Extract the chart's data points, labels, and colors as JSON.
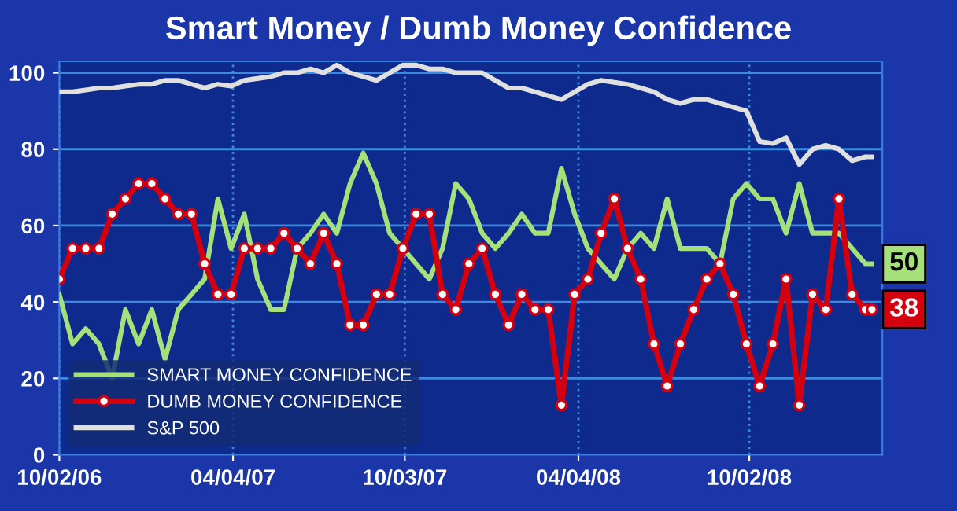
{
  "chart_data": {
    "type": "line",
    "title": "Smart Money / Dumb Money Confidence",
    "x": [
      "2006-10-02",
      "2006-10-16",
      "2006-10-30",
      "2006-11-13",
      "2006-11-27",
      "2006-12-11",
      "2006-12-25",
      "2007-01-08",
      "2007-01-22",
      "2007-02-05",
      "2007-02-19",
      "2007-03-05",
      "2007-03-19",
      "2007-04-02",
      "2007-04-16",
      "2007-04-30",
      "2007-05-14",
      "2007-05-28",
      "2007-06-11",
      "2007-06-25",
      "2007-07-09",
      "2007-07-23",
      "2007-08-06",
      "2007-08-20",
      "2007-09-03",
      "2007-09-17",
      "2007-10-01",
      "2007-10-15",
      "2007-10-29",
      "2007-11-12",
      "2007-11-26",
      "2007-12-10",
      "2007-12-24",
      "2008-01-07",
      "2008-01-21",
      "2008-02-04",
      "2008-02-18",
      "2008-03-03",
      "2008-03-17",
      "2008-03-31",
      "2008-04-14",
      "2008-04-28",
      "2008-05-12",
      "2008-05-26",
      "2008-06-09",
      "2008-06-23",
      "2008-07-07",
      "2008-07-21",
      "2008-08-04",
      "2008-08-18",
      "2008-09-01",
      "2008-09-15",
      "2008-09-29",
      "2008-10-13",
      "2008-10-27",
      "2008-11-10",
      "2008-11-24",
      "2008-12-08",
      "2008-12-22",
      "2009-01-05",
      "2009-01-19",
      "2009-02-02",
      "2009-02-09"
    ],
    "series": [
      {
        "name": "SMART MONEY CONFIDENCE",
        "color": "#a6e07a",
        "marker": "none",
        "values": [
          42,
          29,
          33,
          29,
          20,
          38,
          29,
          38,
          25,
          38,
          42,
          46,
          67,
          54,
          63,
          46,
          38,
          38,
          54,
          58,
          63,
          58,
          71,
          79,
          71,
          58,
          54,
          50,
          46,
          54,
          71,
          67,
          58,
          54,
          58,
          63,
          58,
          58,
          75,
          63,
          54,
          50,
          46,
          54,
          58,
          54,
          67,
          54,
          54,
          54,
          50,
          67,
          71,
          67,
          67,
          58,
          71,
          58,
          58,
          58,
          54,
          50,
          50
        ],
        "value_labels": [
          null,
          null,
          null,
          null,
          null,
          null,
          null,
          null,
          null,
          null,
          null,
          null,
          null,
          null,
          null,
          null,
          null,
          null,
          null,
          null,
          null,
          null,
          null,
          null,
          null,
          null,
          null,
          null,
          null,
          null,
          null,
          null,
          null,
          null,
          null,
          null,
          null,
          null,
          null,
          null,
          null,
          null,
          null,
          null,
          null,
          null,
          null,
          null,
          null,
          null,
          null,
          null,
          null,
          null,
          null,
          null,
          null,
          null,
          null,
          null,
          null,
          null,
          "50"
        ]
      },
      {
        "name": "DUMB MONEY CONFIDENCE",
        "color": "#d40010",
        "marker": "circle",
        "values": [
          46,
          54,
          54,
          54,
          63,
          67,
          71,
          71,
          67,
          63,
          63,
          50,
          42,
          42,
          54,
          54,
          54,
          58,
          54,
          50,
          58,
          50,
          34,
          34,
          42,
          42,
          54,
          63,
          63,
          42,
          38,
          50,
          54,
          42,
          34,
          42,
          38,
          38,
          13,
          42,
          46,
          58,
          67,
          54,
          46,
          29,
          18,
          29,
          38,
          46,
          50,
          42,
          29,
          18,
          29,
          46,
          13,
          42,
          38,
          67,
          42,
          38,
          38
        ],
        "value_labels": [
          null,
          null,
          null,
          null,
          null,
          null,
          null,
          null,
          null,
          null,
          null,
          null,
          null,
          null,
          null,
          null,
          null,
          null,
          null,
          null,
          null,
          null,
          null,
          null,
          null,
          null,
          null,
          null,
          null,
          null,
          null,
          null,
          null,
          null,
          null,
          null,
          null,
          null,
          null,
          null,
          null,
          null,
          null,
          null,
          null,
          null,
          null,
          null,
          null,
          null,
          null,
          null,
          null,
          null,
          null,
          null,
          null,
          null,
          null,
          null,
          null,
          null,
          "38"
        ]
      },
      {
        "name": "S&P 500",
        "color": "#e0e0e0",
        "marker": "none",
        "values": [
          95,
          95,
          95.5,
          96,
          96,
          96.5,
          97,
          97,
          98,
          98,
          97,
          96,
          97,
          96.5,
          98,
          98.5,
          99,
          100,
          100,
          101,
          100,
          102,
          100,
          99,
          98,
          100,
          102,
          102,
          101,
          101,
          100,
          100,
          100,
          98,
          96,
          96,
          95,
          94,
          93,
          95,
          97,
          98,
          97.5,
          97,
          96,
          95,
          93,
          92,
          93,
          93,
          92,
          91,
          90,
          82,
          81.5,
          83,
          76,
          80,
          81,
          80,
          77,
          78,
          78
        ]
      }
    ],
    "xlim": [
      "2006-10-02",
      "2009-02-20"
    ],
    "xticks": [
      {
        "value": "2006-10-02",
        "label": "10/02/06"
      },
      {
        "value": "2007-04-04",
        "label": "04/04/07"
      },
      {
        "value": "2007-10-03",
        "label": "10/03/07"
      },
      {
        "value": "2008-04-04",
        "label": "04/04/08"
      },
      {
        "value": "2008-10-02",
        "label": "10/02/08"
      }
    ],
    "ylim": [
      0,
      103
    ],
    "yticks": [
      0,
      20,
      40,
      60,
      80,
      100
    ],
    "grid": true,
    "legend": "bottom left",
    "line_style": "solid"
  }
}
